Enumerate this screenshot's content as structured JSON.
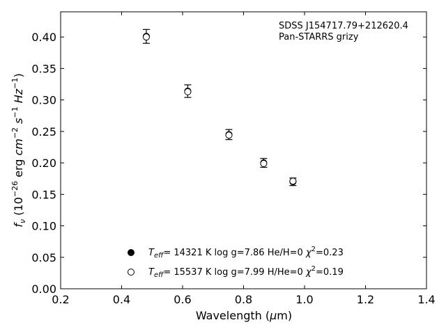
{
  "chart_data": {
    "type": "scatter",
    "xlabel": "Wavelength (μm)",
    "ylabel": "f_ν (10^-26 erg cm^-2 s^-1 Hz^-1)",
    "xlim": [
      0.2,
      1.4
    ],
    "ylim": [
      0.0,
      0.44
    ],
    "xticks": [
      "0.2",
      "0.4",
      "0.6",
      "0.8",
      "1.0",
      "1.2",
      "1.4"
    ],
    "yticks": [
      "0.00",
      "0.05",
      "0.10",
      "0.15",
      "0.20",
      "0.25",
      "0.30",
      "0.35",
      "0.40"
    ],
    "grid": false,
    "annotations": [
      "SDSS J154717.79+212620.4",
      "Pan-STARRS grizy"
    ],
    "series": [
      {
        "name": "T_eff= 14321 K  log g=7.86  He/H=0  χ²=0.23",
        "marker": "filled-circle",
        "points": [
          {
            "x": 0.481,
            "y": 0.401,
            "err": 0.011
          },
          {
            "x": 0.617,
            "y": 0.314,
            "err": 0.01
          },
          {
            "x": 0.752,
            "y": 0.245,
            "err": 0.008
          },
          {
            "x": 0.866,
            "y": 0.2,
            "err": 0.007
          },
          {
            "x": 0.962,
            "y": 0.17,
            "err": 0.006
          }
        ]
      },
      {
        "name": "T_eff= 15537 K  log g=7.99  H/He=0  χ²=0.19",
        "marker": "open-circle",
        "points": [
          {
            "x": 0.481,
            "y": 0.4
          },
          {
            "x": 0.617,
            "y": 0.313
          },
          {
            "x": 0.752,
            "y": 0.244
          },
          {
            "x": 0.866,
            "y": 0.199
          },
          {
            "x": 0.962,
            "y": 0.171
          }
        ]
      }
    ],
    "legend": {
      "entries": [
        {
          "teff": "14321 K",
          "logg": "log g=7.86",
          "comp": "He/H=0",
          "chi2": "=0.23"
        },
        {
          "teff": "15537 K",
          "logg": "log g=7.99",
          "comp": "H/He=0",
          "chi2": "=0.19"
        }
      ]
    }
  }
}
